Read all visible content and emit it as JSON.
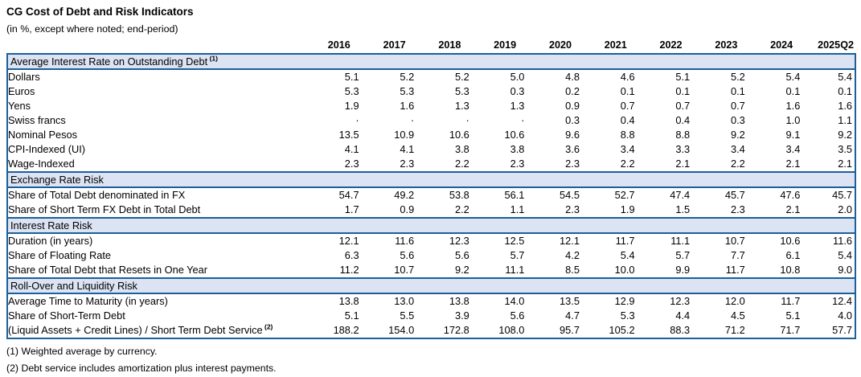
{
  "title": "CG Cost of Debt and Risk Indicators",
  "subtitle": "(in %, except where noted; end-period)",
  "columns": [
    "2016",
    "2017",
    "2018",
    "2019",
    "2020",
    "2021",
    "2022",
    "2023",
    "2024",
    "2025Q2"
  ],
  "sections": [
    {
      "header": "Average Interest Rate on Outstanding Debt",
      "header_sup": "(1)",
      "rows": [
        {
          "label": "Dollars",
          "values": [
            "5.1",
            "5.2",
            "5.2",
            "5.0",
            "4.8",
            "4.6",
            "5.1",
            "5.2",
            "5.4",
            "5.4"
          ]
        },
        {
          "label": "Euros",
          "values": [
            "5.3",
            "5.3",
            "5.3",
            "0.3",
            "0.2",
            "0.1",
            "0.1",
            "0.1",
            "0.1",
            "0.1"
          ]
        },
        {
          "label": "Yens",
          "values": [
            "1.9",
            "1.6",
            "1.3",
            "1.3",
            "0.9",
            "0.7",
            "0.7",
            "0.7",
            "1.6",
            "1.6"
          ]
        },
        {
          "label": "Swiss francs",
          "values": [
            "·",
            "·",
            "·",
            "·",
            "0.3",
            "0.4",
            "0.4",
            "0.3",
            "1.0",
            "1.1"
          ]
        },
        {
          "label": "Nominal Pesos",
          "values": [
            "13.5",
            "10.9",
            "10.6",
            "10.6",
            "9.6",
            "8.8",
            "8.8",
            "9.2",
            "9.1",
            "9.2"
          ]
        },
        {
          "label": "CPI-Indexed (UI)",
          "values": [
            "4.1",
            "4.1",
            "3.8",
            "3.8",
            "3.6",
            "3.4",
            "3.3",
            "3.4",
            "3.4",
            "3.5"
          ]
        },
        {
          "label": "Wage-Indexed",
          "values": [
            "2.3",
            "2.3",
            "2.2",
            "2.3",
            "2.3",
            "2.2",
            "2.1",
            "2.2",
            "2.1",
            "2.1"
          ]
        }
      ]
    },
    {
      "header": "Exchange Rate Risk",
      "rows": [
        {
          "label": "Share of Total Debt denominated in FX",
          "values": [
            "54.7",
            "49.2",
            "53.8",
            "56.1",
            "54.5",
            "52.7",
            "47.4",
            "45.7",
            "47.6",
            "45.7"
          ]
        },
        {
          "label": "Share of Short Term FX Debt in Total Debt",
          "values": [
            "1.7",
            "0.9",
            "2.2",
            "1.1",
            "2.3",
            "1.9",
            "1.5",
            "2.3",
            "2.1",
            "2.0"
          ]
        }
      ]
    },
    {
      "header": "Interest Rate Risk",
      "rows": [
        {
          "label": "Duration (in years)",
          "values": [
            "12.1",
            "11.6",
            "12.3",
            "12.5",
            "12.1",
            "11.7",
            "11.1",
            "10.7",
            "10.6",
            "11.6"
          ]
        },
        {
          "label": "Share of Floating Rate",
          "values": [
            "6.3",
            "5.6",
            "5.6",
            "5.7",
            "4.2",
            "5.4",
            "5.7",
            "7.7",
            "6.1",
            "5.4"
          ]
        },
        {
          "label": "Share of Total Debt that Resets in One Year",
          "values": [
            "11.2",
            "10.7",
            "9.2",
            "11.1",
            "8.5",
            "10.0",
            "9.9",
            "11.7",
            "10.8",
            "9.0"
          ]
        }
      ]
    },
    {
      "header": "Roll-Over and Liquidity Risk",
      "rows": [
        {
          "label": "Average Time to Maturity (in years)",
          "values": [
            "13.8",
            "13.0",
            "13.8",
            "14.0",
            "13.5",
            "12.9",
            "12.3",
            "12.0",
            "11.7",
            "12.4"
          ]
        },
        {
          "label": "Share of Short-Term Debt",
          "values": [
            "5.1",
            "5.5",
            "3.9",
            "5.6",
            "4.7",
            "5.3",
            "4.4",
            "4.5",
            "5.1",
            "4.0"
          ]
        },
        {
          "label": "(Liquid Assets + Credit Lines) / Short Term Debt Service",
          "label_sup": "(2)",
          "values": [
            "188.2",
            "154.0",
            "172.8",
            "108.0",
            "95.7",
            "105.2",
            "88.3",
            "71.2",
            "71.7",
            "57.7"
          ]
        }
      ]
    }
  ],
  "footnotes": [
    "(1) Weighted average by currency.",
    "(2) Debt service includes amortization plus interest payments."
  ],
  "colors": {
    "table_border": "#1B5F9B",
    "section_header_bg": "#DCE3F2"
  }
}
